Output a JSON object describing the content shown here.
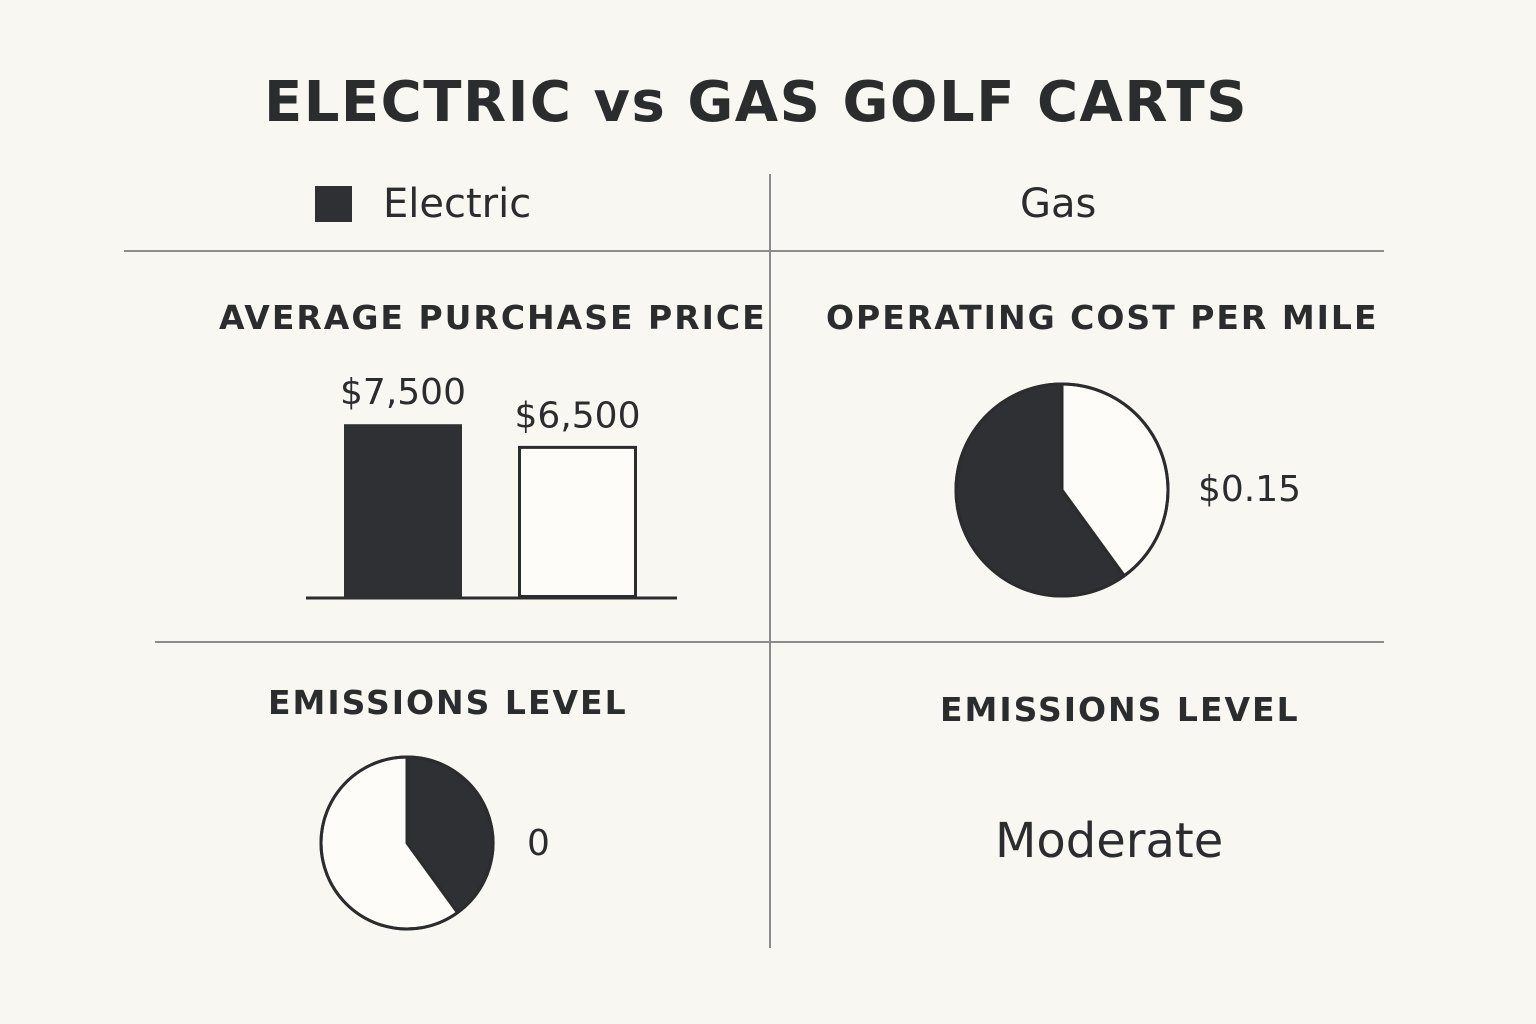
{
  "title": "ELECTRIC vs GAS GOLF CARTS",
  "legend": {
    "electric_label": "Electric",
    "electric_color": "#2e3033",
    "gas_label": "Gas"
  },
  "sections": {
    "purchase_price": {
      "title": "AVERAGE PURCHASE PRICE"
    },
    "operating_cost": {
      "title": "OPERATING COST PER MILE",
      "value_label": "$0.15"
    },
    "emissions_electric": {
      "title": "EMISSIONS LEVEL",
      "value_label": "0"
    },
    "emissions_gas": {
      "title": "EMISSIONS LEVEL",
      "value_text": "Moderate"
    }
  },
  "chart_data": [
    {
      "type": "bar",
      "title": "AVERAGE PURCHASE PRICE",
      "categories": [
        "Electric",
        "Gas"
      ],
      "values": [
        7500,
        6500
      ],
      "data_labels": [
        "$7,500",
        "$6,500"
      ],
      "colors": [
        "#2e3033",
        "#ffffff"
      ],
      "ylim": [
        0,
        8200
      ]
    },
    {
      "type": "pie",
      "title": "OPERATING COST PER MILE",
      "labels": [
        "Electric",
        "Gas"
      ],
      "values": [
        0.6,
        0.4
      ],
      "colors": [
        "#2e3033",
        "#ffffff"
      ],
      "annotation": "$0.15"
    },
    {
      "type": "pie",
      "title": "EMISSIONS LEVEL",
      "labels": [
        "Electric",
        "Gas"
      ],
      "values": [
        0.4,
        0.6
      ],
      "colors": [
        "#2e3033",
        "#ffffff"
      ],
      "annotation": "0"
    }
  ]
}
